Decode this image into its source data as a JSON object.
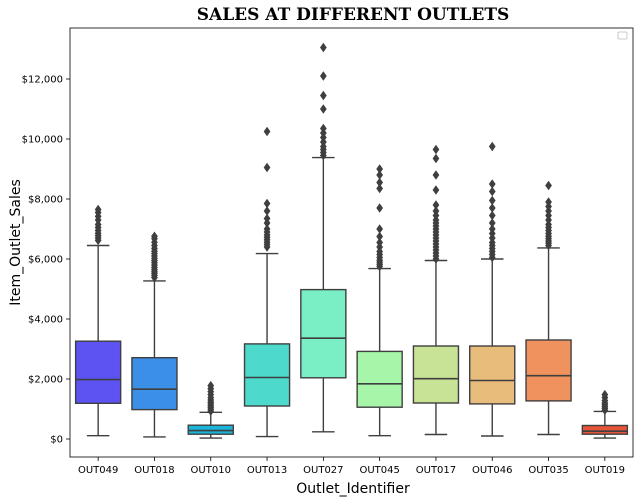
{
  "chart_data": {
    "type": "box",
    "title": "SALES AT DIFFERENT OUTLETS",
    "xlabel": "Outlet_Identifier",
    "ylabel": "Item_Outlet_Sales",
    "ylim": [
      -600,
      13700
    ],
    "yticks": [
      0,
      2000,
      4000,
      6000,
      8000,
      10000,
      12000
    ],
    "ytick_labels": [
      "$0",
      "$2,000",
      "$4,000",
      "$6,000",
      "$8,000",
      "$10,000",
      "$12,000"
    ],
    "legend": "top-right, empty",
    "categories": [
      "OUT049",
      "OUT018",
      "OUT010",
      "OUT013",
      "OUT027",
      "OUT045",
      "OUT017",
      "OUT046",
      "OUT035",
      "OUT019"
    ],
    "boxes": [
      {
        "category": "OUT049",
        "color": "#5d52f2",
        "min": 110,
        "q1": 1190,
        "median": 1980,
        "q3": 3260,
        "max": 6450,
        "outliers": [
          6620,
          6700,
          6780,
          6860,
          6950,
          7050,
          7150,
          7300,
          7420,
          7550,
          7650
        ]
      },
      {
        "category": "OUT018",
        "color": "#3b8fe6",
        "min": 70,
        "q1": 980,
        "median": 1660,
        "q3": 2710,
        "max": 5270,
        "outliers": [
          5380,
          5450,
          5520,
          5580,
          5650,
          5720,
          5800,
          5880,
          5950,
          6020,
          6100,
          6180,
          6260,
          6350,
          6450,
          6560,
          6680,
          6760
        ]
      },
      {
        "category": "OUT010",
        "color": "#1bb5d8",
        "min": 30,
        "q1": 160,
        "median": 280,
        "q3": 460,
        "max": 890,
        "outliers": [
          930,
          990,
          1050,
          1110,
          1170,
          1230,
          1300,
          1380,
          1480,
          1580,
          1680,
          1780
        ]
      },
      {
        "category": "OUT013",
        "color": "#4dd9cc",
        "min": 80,
        "q1": 1100,
        "median": 2050,
        "q3": 3170,
        "max": 6180,
        "outliers": [
          6400,
          6480,
          6560,
          6640,
          6720,
          6800,
          6900,
          7000,
          7200,
          7350,
          7600,
          7850,
          9050,
          10250
        ]
      },
      {
        "category": "OUT027",
        "color": "#7aeec4",
        "min": 240,
        "q1": 2040,
        "median": 3360,
        "q3": 4980,
        "max": 9380,
        "outliers": [
          9450,
          9550,
          9650,
          9750,
          9900,
          10050,
          10200,
          10350,
          11000,
          11450,
          12100,
          13050
        ]
      },
      {
        "category": "OUT045",
        "color": "#a6f5a8",
        "min": 110,
        "q1": 1060,
        "median": 1840,
        "q3": 2920,
        "max": 5680,
        "outliers": [
          5750,
          5820,
          5890,
          5960,
          6050,
          6150,
          6250,
          6400,
          6550,
          6750,
          7000,
          7700,
          8350,
          8550,
          8800,
          9000
        ]
      },
      {
        "category": "OUT017",
        "color": "#c8e296",
        "min": 150,
        "q1": 1200,
        "median": 2010,
        "q3": 3100,
        "max": 5950,
        "outliers": [
          6000,
          6100,
          6200,
          6300,
          6400,
          6500,
          6600,
          6700,
          6800,
          6900,
          7000,
          7100,
          7200,
          7300,
          7450,
          7600,
          7800,
          8300,
          8800,
          9350,
          9650
        ]
      },
      {
        "category": "OUT046",
        "color": "#e8bc7a",
        "min": 100,
        "q1": 1170,
        "median": 1950,
        "q3": 3100,
        "max": 6000,
        "outliers": [
          6050,
          6150,
          6250,
          6350,
          6450,
          6550,
          6700,
          6850,
          7000,
          7200,
          7450,
          7700,
          7950,
          8250,
          8500,
          9750
        ]
      },
      {
        "category": "OUT035",
        "color": "#f0925e",
        "min": 150,
        "q1": 1270,
        "median": 2110,
        "q3": 3300,
        "max": 6370,
        "outliers": [
          6450,
          6530,
          6600,
          6680,
          6760,
          6850,
          6950,
          7050,
          7150,
          7300,
          7450,
          7600,
          7750,
          7900,
          8450
        ]
      },
      {
        "category": "OUT019",
        "color": "#e6553a",
        "min": 30,
        "q1": 160,
        "median": 260,
        "q3": 450,
        "max": 920,
        "outliers": [
          960,
          1020,
          1080,
          1140,
          1200,
          1280,
          1380,
          1480
        ]
      }
    ]
  }
}
